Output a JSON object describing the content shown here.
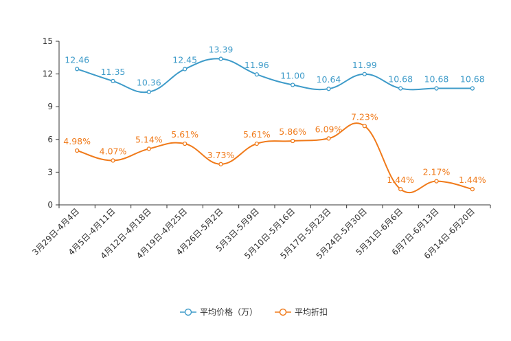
{
  "chart_data": {
    "type": "line",
    "title": "",
    "xlabel": "",
    "ylabel": "",
    "ylim": [
      0,
      15
    ],
    "yticks": [
      0,
      3,
      6,
      9,
      12,
      15
    ],
    "grid": false,
    "legend_position": "bottom",
    "categories": [
      "3月29日-4月4日",
      "4月5日-4月11日",
      "4月12日-4月18日",
      "4月19日-4月25日",
      "4月26日-5月2日",
      "5月3日-5月9日",
      "5月10日-5月16日",
      "5月17日-5月23日",
      "5月24日-5月30日",
      "5月31日-6月6日",
      "6月7日-6月13日",
      "6月14日-6月20日"
    ],
    "series": [
      {
        "name": "平均价格（万）",
        "color": "#3e9bc9",
        "values": [
          12.46,
          11.35,
          10.36,
          12.45,
          13.39,
          11.96,
          11.0,
          10.64,
          11.99,
          10.68,
          10.68,
          10.68
        ],
        "labels": [
          "12.46",
          "11.35",
          "10.36",
          "12.45",
          "13.39",
          "11.96",
          "11.00",
          "10.64",
          "11.99",
          "10.68",
          "10.68",
          "10.68"
        ]
      },
      {
        "name": "平均折扣",
        "color": "#f07a1a",
        "values": [
          4.98,
          4.07,
          5.14,
          5.61,
          3.73,
          5.61,
          5.86,
          6.09,
          7.23,
          1.44,
          2.17,
          1.44
        ],
        "labels": [
          "4.98%",
          "4.07%",
          "5.14%",
          "5.61%",
          "3.73%",
          "5.61%",
          "5.86%",
          "6.09%",
          "7.23%",
          "1.44%",
          "2.17%",
          "1.44%"
        ]
      }
    ]
  }
}
